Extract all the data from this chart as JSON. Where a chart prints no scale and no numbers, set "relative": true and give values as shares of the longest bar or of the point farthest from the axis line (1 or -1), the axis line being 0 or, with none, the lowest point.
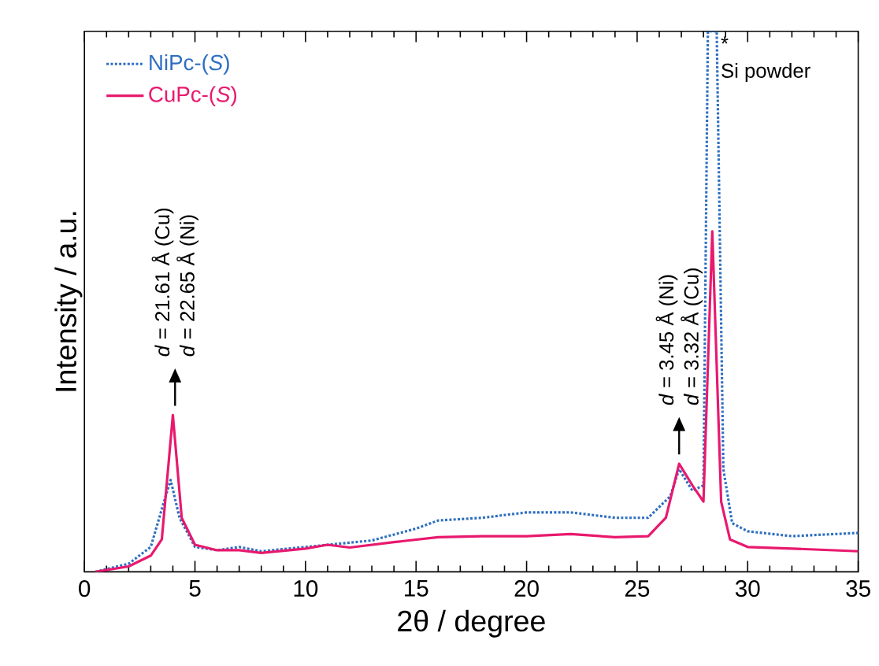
{
  "chart_data": {
    "type": "line",
    "relative": true,
    "xlabel": "2θ / degree",
    "ylabel": "Intensity / a.u.",
    "xlim": [
      0,
      35
    ],
    "xticks": [
      0,
      5,
      10,
      15,
      20,
      25,
      30,
      35
    ],
    "legend": "top left",
    "series": [
      {
        "name": "NiPc-(*S*)",
        "color": "#2e6fc0",
        "line_style": "dotted",
        "x": [
          0.5,
          2,
          3,
          3.6,
          3.9,
          4.3,
          5,
          6,
          7,
          8,
          10,
          11,
          13,
          15,
          16,
          18,
          20,
          22,
          24,
          25.5,
          26.5,
          26.9,
          27.5,
          28.0,
          28.2,
          28.6,
          28.9,
          29.3,
          30,
          32,
          35
        ],
        "values": [
          0,
          0.015,
          0.046,
          0.13,
          0.17,
          0.1,
          0.046,
          0.04,
          0.046,
          0.038,
          0.046,
          0.05,
          0.058,
          0.08,
          0.095,
          0.1,
          0.11,
          0.11,
          0.1,
          0.1,
          0.14,
          0.19,
          0.15,
          0.16,
          1.0,
          1.0,
          0.19,
          0.09,
          0.075,
          0.066,
          0.072
        ]
      },
      {
        "name": "CuPc-(*S*)",
        "color": "#e8196e",
        "line_style": "solid",
        "x": [
          0.5,
          2,
          3,
          3.5,
          4.0,
          4.4,
          5,
          6,
          7,
          8,
          10,
          11,
          12,
          14,
          16,
          18,
          20,
          22,
          24,
          25.5,
          26.3,
          26.9,
          27.5,
          28.0,
          28.4,
          28.8,
          29.2,
          30,
          32,
          35
        ],
        "values": [
          0,
          0.01,
          0.03,
          0.06,
          0.29,
          0.1,
          0.05,
          0.04,
          0.04,
          0.035,
          0.043,
          0.05,
          0.045,
          0.055,
          0.064,
          0.066,
          0.066,
          0.07,
          0.064,
          0.066,
          0.1,
          0.2,
          0.16,
          0.13,
          0.63,
          0.13,
          0.06,
          0.046,
          0.043,
          0.038
        ]
      }
    ],
    "annotations": [
      {
        "text": "*d* = 21.61 Å (Cu)",
        "x": 4.1,
        "y": 0.29
      },
      {
        "text": "*d* = 22.65 Å (Ni)",
        "x": 4.1,
        "y": 0.29
      },
      {
        "text": "*d* = 3.45 Å (Ni)",
        "x": 26.9,
        "y": 0.2
      },
      {
        "text": "*d* = 3.32 Å (Cu)",
        "x": 26.9,
        "y": 0.2
      },
      {
        "text": "*",
        "x": 28.4,
        "y": 1
      },
      {
        "text": "Si powder",
        "x": 28.4,
        "y": 1
      }
    ]
  }
}
